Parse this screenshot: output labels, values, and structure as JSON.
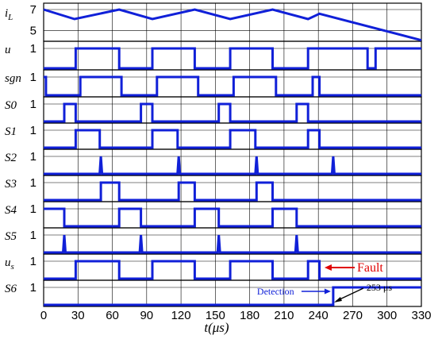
{
  "chart_data": {
    "type": "line",
    "title": "",
    "xlabel": "t(μs)",
    "xlim": [
      0,
      330
    ],
    "x_ticks": [
      "0",
      "30",
      "60",
      "90",
      "120",
      "150",
      "180",
      "210",
      "240",
      "270",
      "300",
      "330"
    ],
    "grid": true,
    "rows": [
      {
        "label_main": "i",
        "label_sub": "L",
        "ylim": [
          4,
          7.6
        ],
        "tick_labels": [
          "7",
          "5"
        ],
        "tick_values": [
          7,
          5
        ],
        "color": "#1020d8",
        "points": [
          [
            0,
            7
          ],
          [
            27,
            6.1
          ],
          [
            66,
            7
          ],
          [
            95,
            6.1
          ],
          [
            132,
            7
          ],
          [
            163,
            6.1
          ],
          [
            200,
            7
          ],
          [
            231,
            6.1
          ],
          [
            241,
            6.6
          ],
          [
            330,
            4.1
          ]
        ]
      },
      {
        "label": "u",
        "tick_label": "1",
        "color": "#1020d8",
        "initial": 0,
        "edges": [
          [
            28,
            1
          ],
          [
            66,
            0
          ],
          [
            95,
            1
          ],
          [
            132,
            0
          ],
          [
            163,
            1
          ],
          [
            200,
            0
          ],
          [
            231,
            1
          ],
          [
            283,
            0
          ],
          [
            290,
            1
          ]
        ]
      },
      {
        "label": "sgn",
        "tick_label": "1",
        "color": "#1020d8",
        "initial": 1,
        "edges": [
          [
            2,
            0
          ],
          [
            32,
            1
          ],
          [
            68,
            0
          ],
          [
            99,
            1
          ],
          [
            135,
            0
          ],
          [
            166,
            1
          ],
          [
            203,
            0
          ],
          [
            235,
            1
          ],
          [
            241,
            0
          ]
        ]
      },
      {
        "label": "S0",
        "tick_label": "1",
        "color": "#1020d8",
        "initial": 0,
        "edges": [
          [
            18,
            1
          ],
          [
            28,
            0
          ],
          [
            85,
            1
          ],
          [
            95,
            0
          ],
          [
            153,
            1
          ],
          [
            163,
            0
          ],
          [
            221,
            1
          ],
          [
            231,
            0
          ]
        ]
      },
      {
        "label": "S1",
        "tick_label": "1",
        "color": "#1020d8",
        "initial": 0,
        "edges": [
          [
            28,
            1
          ],
          [
            49,
            0
          ],
          [
            95,
            1
          ],
          [
            117,
            0
          ],
          [
            163,
            1
          ],
          [
            185,
            0
          ],
          [
            231,
            1
          ],
          [
            241,
            0
          ]
        ]
      },
      {
        "label": "S2",
        "tick_label": "1",
        "color": "#1020d8",
        "initial": 0,
        "pulses": [
          50,
          118,
          186,
          253
        ]
      },
      {
        "label": "S3",
        "tick_label": "1",
        "color": "#1020d8",
        "initial": 0,
        "edges": [
          [
            50,
            1
          ],
          [
            66,
            0
          ],
          [
            118,
            1
          ],
          [
            132,
            0
          ],
          [
            186,
            1
          ],
          [
            200,
            0
          ]
        ]
      },
      {
        "label": "S4",
        "tick_label": "1",
        "color": "#1020d8",
        "initial": 1,
        "edges": [
          [
            18,
            0
          ],
          [
            66,
            1
          ],
          [
            85,
            0
          ],
          [
            132,
            1
          ],
          [
            153,
            0
          ],
          [
            200,
            1
          ],
          [
            221,
            0
          ]
        ]
      },
      {
        "label": "S5",
        "tick_label": "1",
        "color": "#1020d8",
        "initial": 0,
        "pulses": [
          18,
          85,
          153,
          221
        ]
      },
      {
        "label_main": "u",
        "label_sub": "s",
        "tick_label": "1",
        "color": "#1020d8",
        "initial": 0,
        "edges": [
          [
            28,
            1
          ],
          [
            66,
            0
          ],
          [
            95,
            1
          ],
          [
            132,
            0
          ],
          [
            163,
            1
          ],
          [
            200,
            0
          ],
          [
            231,
            1
          ],
          [
            241,
            0
          ]
        ]
      },
      {
        "label": "S6",
        "tick_label": "1",
        "color": "#1020d8",
        "initial": 0,
        "edges": [
          [
            253,
            1
          ]
        ]
      }
    ],
    "annotations": [
      {
        "text": "Fault",
        "color": "#e00000",
        "x": 244,
        "row": "us"
      },
      {
        "text": "Detection",
        "color": "#1020d8",
        "x": 253,
        "row": "S6"
      },
      {
        "text": "253 μs",
        "color": "#000000",
        "x": 253,
        "row": "S6"
      }
    ]
  }
}
